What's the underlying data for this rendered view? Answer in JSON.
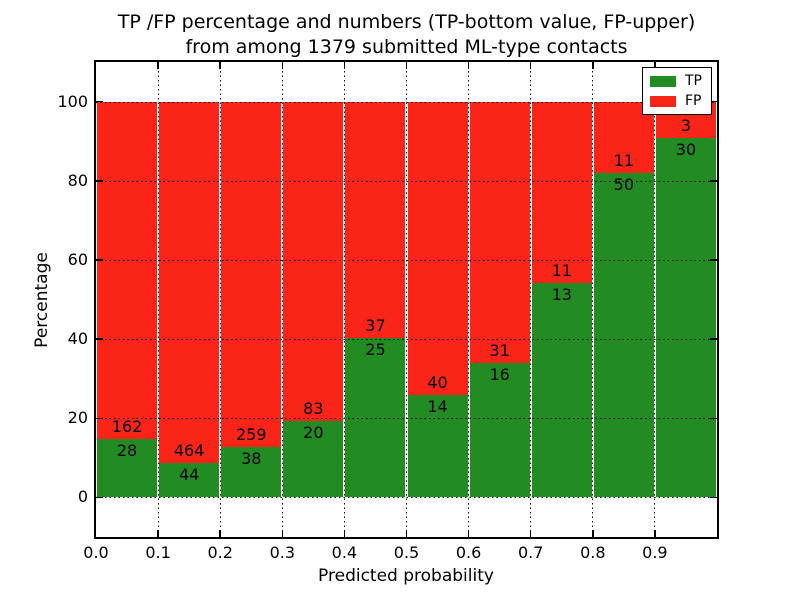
{
  "title": {
    "line1": "TP /FP percentage and numbers (TP-bottom value, FP-upper)",
    "line2": "from among 1379 submitted ML-type contacts"
  },
  "colors": {
    "tp_green": "#228b22",
    "fp_red": "#fa2418",
    "axis_black": "#000000"
  },
  "chart_data": {
    "type": "bar",
    "stacked": true,
    "normalized_to_percent": true,
    "title": "TP /FP percentage and numbers (TP-bottom value, FP-upper) from among 1379 submitted ML-type contacts",
    "xlabel": "Predicted probability",
    "ylabel": "Percentage",
    "total_contacts": 1379,
    "bin_width": 0.1,
    "bin_starts": [
      0.0,
      0.1,
      0.2,
      0.3,
      0.4,
      0.5,
      0.6,
      0.7,
      0.8,
      0.9
    ],
    "series": [
      {
        "name": "TP",
        "color": "#228b22",
        "counts": [
          28,
          44,
          38,
          20,
          25,
          14,
          16,
          13,
          50,
          30
        ]
      },
      {
        "name": "FP",
        "color": "#fa2418",
        "counts": [
          162,
          464,
          259,
          83,
          37,
          40,
          31,
          11,
          11,
          3
        ]
      }
    ],
    "tp_percent": [
      14.7,
      8.7,
      12.8,
      19.4,
      40.3,
      25.9,
      34.0,
      54.2,
      82.0,
      90.9
    ],
    "bar_total_percent": 100,
    "xlim": [
      0.0,
      1.0
    ],
    "ylim": [
      -10,
      110
    ],
    "xticks": [
      "0.0",
      "0.1",
      "0.2",
      "0.3",
      "0.4",
      "0.5",
      "0.6",
      "0.7",
      "0.8",
      "0.9"
    ],
    "yticks": [
      0,
      20,
      40,
      60,
      80,
      100
    ],
    "grid": "dotted",
    "legend": {
      "position": "upper right",
      "entries": [
        {
          "label": "TP",
          "color": "#228b22"
        },
        {
          "label": "FP",
          "color": "#fa2418"
        }
      ]
    }
  }
}
